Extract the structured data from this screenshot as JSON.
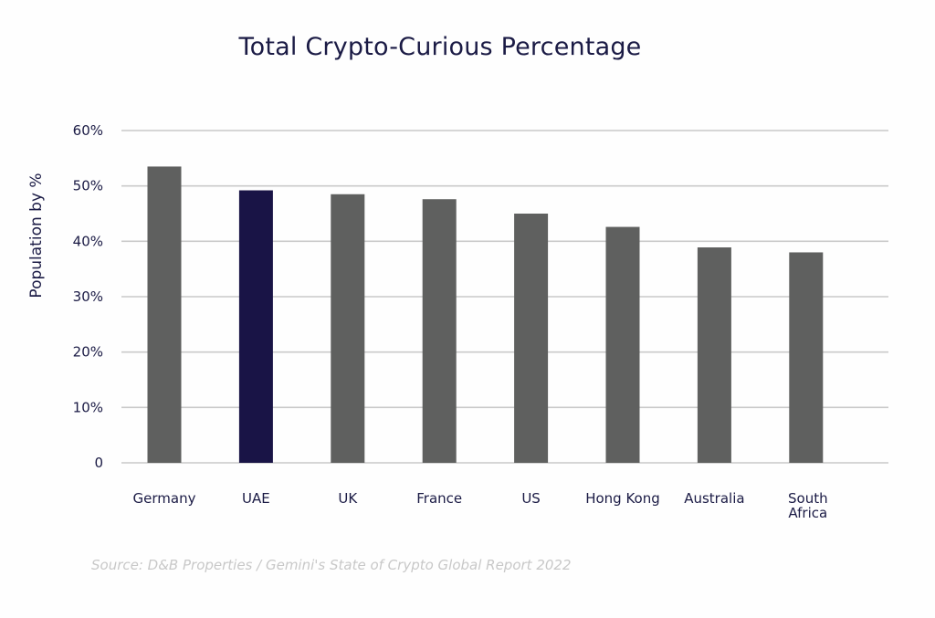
{
  "colors": {
    "bar_default": "#5f605f",
    "bar_highlight": "#191446",
    "grid": "#c9c9c9",
    "text": "#1b1b45"
  },
  "chart_data": {
    "type": "bar",
    "title": "Total Crypto-Curious Percentage",
    "xlabel": "",
    "ylabel": "Population by %",
    "categories": [
      "Germany",
      "UAE",
      "UK",
      "France",
      "US",
      "Hong Kong",
      "Australia",
      "South Africa"
    ],
    "values": [
      53.5,
      49.2,
      48.5,
      47.6,
      45.0,
      42.6,
      38.9,
      38.0
    ],
    "highlight": "UAE",
    "ylim": [
      0,
      60
    ],
    "yticks": [
      {
        "value": 0,
        "label": "0"
      },
      {
        "value": 10,
        "label": "10%"
      },
      {
        "value": 20,
        "label": "20%"
      },
      {
        "value": 30,
        "label": "30%"
      },
      {
        "value": 40,
        "label": "40%"
      },
      {
        "value": 50,
        "label": "50%"
      },
      {
        "value": 60,
        "label": "60%"
      }
    ],
    "grid": true,
    "legend": "none",
    "source": "Source: D&B Properties / Gemini's State of Crypto Global Report 2022"
  }
}
